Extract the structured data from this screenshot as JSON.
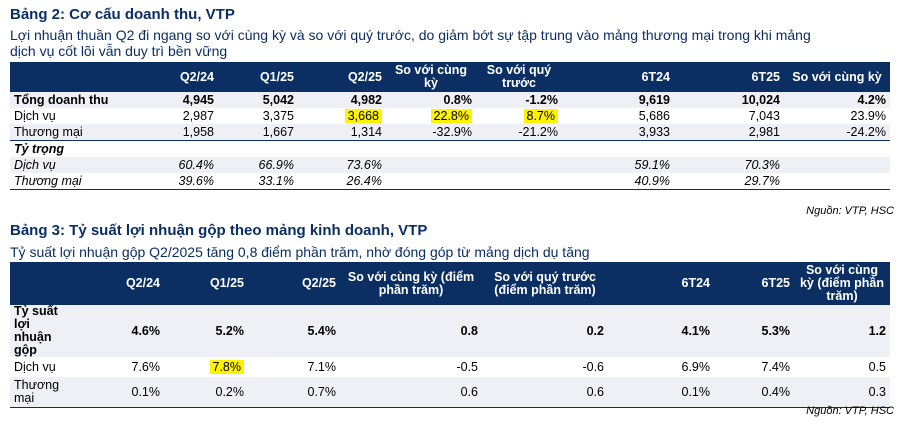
{
  "table2": {
    "title": "Bảng 2: Cơ cấu doanh thu, VTP",
    "subtitle_line1": "Lợi nhuận thuần Q2 đi ngang so với cùng kỳ và so với quý trước, do giảm bớt sự tập trung vào mảng thương mại trong khi mảng",
    "subtitle_line2": "dịch vụ cốt lõi vẫn duy trì bền vững",
    "headers": [
      "",
      "Q2/24",
      "Q1/25",
      "Q2/25",
      "So với cùng kỳ",
      "So với quý trước",
      "6T24",
      "6T25",
      "So với cùng kỳ"
    ],
    "rows": [
      [
        "Tổng doanh thu",
        "4,945",
        "5,042",
        "4,982",
        "0.8%",
        "-1.2%",
        "9,619",
        "10,024",
        "4.2%"
      ],
      [
        "Dịch vụ",
        "2,987",
        "3,375",
        "3,668",
        "22.8%",
        "8.7%",
        "5,686",
        "7,043",
        "23.9%"
      ],
      [
        "Thương mại",
        "1,958",
        "1,667",
        "1,314",
        "-32.9%",
        "-21.2%",
        "3,933",
        "2,981",
        "-24.2%"
      ],
      [
        "Tỷ trọng",
        "",
        "",
        "",
        "",
        "",
        "",
        "",
        ""
      ],
      [
        "Dịch vụ",
        "60.4%",
        "66.9%",
        "73.6%",
        "",
        "",
        "59.1%",
        "70.3%",
        ""
      ],
      [
        "Thương mại",
        "39.6%",
        "33.1%",
        "26.4%",
        "",
        "",
        "40.9%",
        "29.7%",
        ""
      ]
    ],
    "source": "Nguồn: VTP, HSC"
  },
  "table3": {
    "title": "Bảng 3: Tỷ suất lợi nhuận gộp theo mảng kinh doanh, VTP",
    "subtitle": "Tỷ suất lợi nhuận gộp Q2/2025 tăng 0,8 điểm phần trăm, nhờ đóng góp từ mảng dịch dụ tăng",
    "headers": [
      "",
      "Q2/24",
      "Q1/25",
      "Q2/25",
      "So với cùng kỳ (điểm phần trăm)",
      "So với quý trước (điểm phần trăm)",
      "6T24",
      "6T25",
      "So với cùng kỳ (điểm phần trăm)"
    ],
    "rows": [
      [
        "Tỷ suất lợi nhuận gộp",
        "4.6%",
        "5.2%",
        "5.4%",
        "0.8",
        "0.2",
        "4.1%",
        "5.3%",
        "1.2"
      ],
      [
        "Dịch vụ",
        "7.6%",
        "7.8%",
        "7.1%",
        "-0.5",
        "-0.6",
        "6.9%",
        "7.4%",
        "0.5"
      ],
      [
        "Thương mại",
        "0.1%",
        "0.2%",
        "0.7%",
        "0.6",
        "0.6",
        "0.1%",
        "0.4%",
        "0.3"
      ]
    ],
    "source": "Nguồn: VTP, HSC"
  },
  "colors": {
    "navy": "#0b2e63",
    "highlight": "#fff200",
    "shade": "#eef0f6"
  }
}
